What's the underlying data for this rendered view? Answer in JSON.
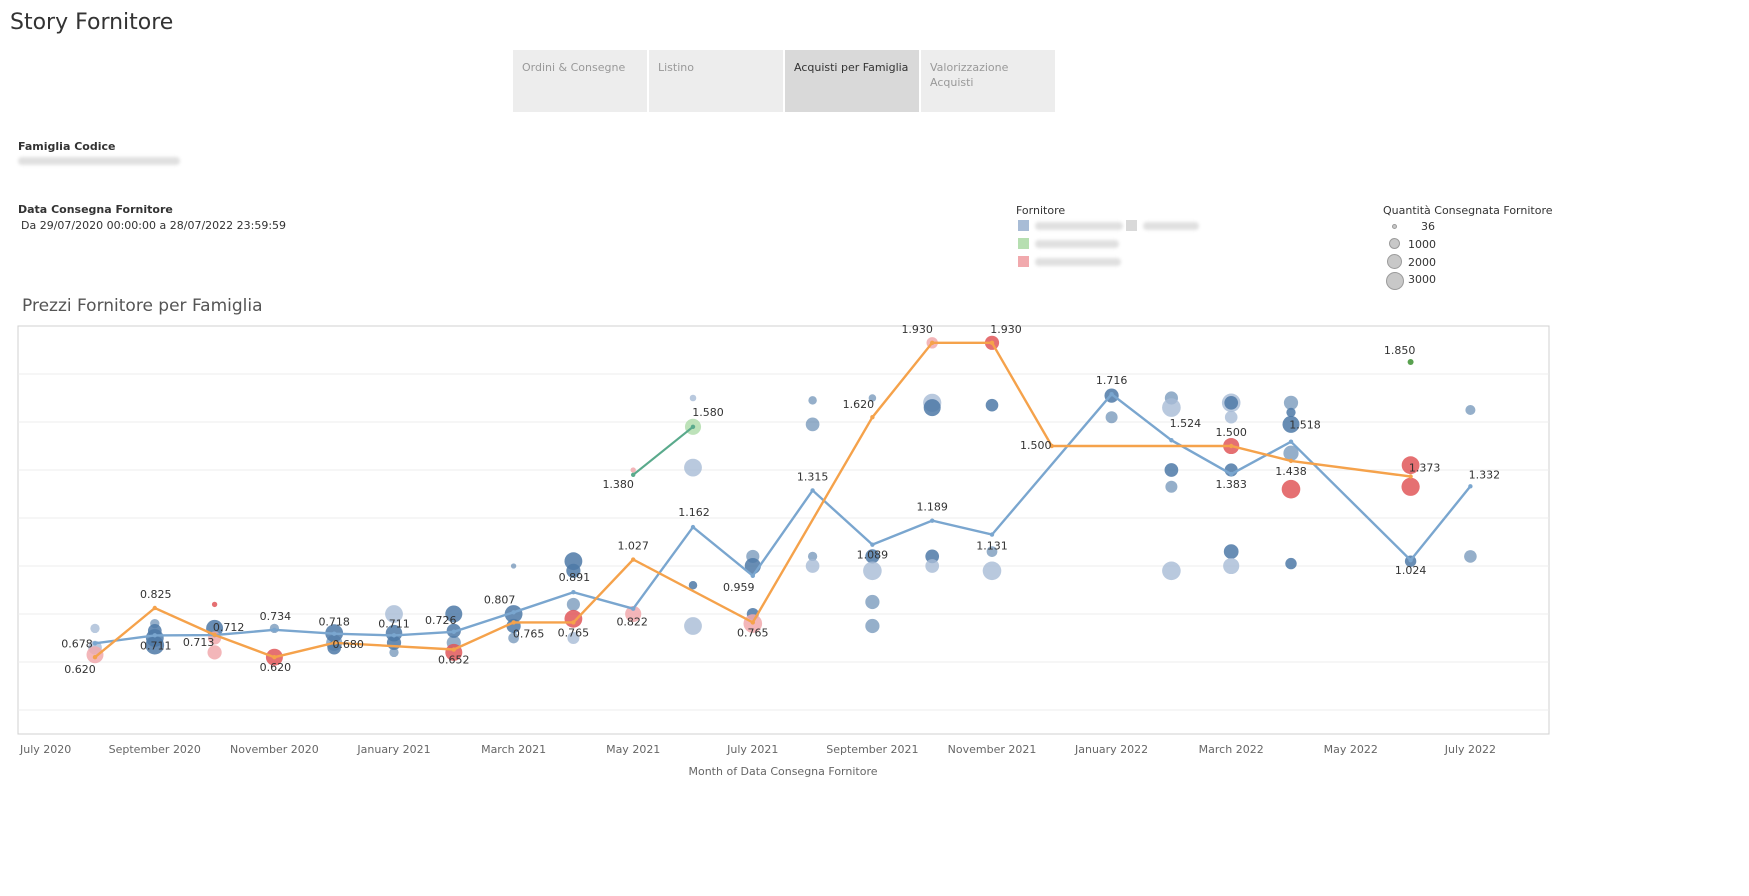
{
  "story": {
    "title": "Story Fornitore"
  },
  "tabs": [
    {
      "label": "Ordini & Consegne",
      "active": false
    },
    {
      "label": "Listino",
      "active": false
    },
    {
      "label": "Acquisti per Famiglia",
      "active": true
    },
    {
      "label": "Valorizzazione Acquisti",
      "active": false
    }
  ],
  "filters": {
    "famiglia": {
      "title": "Famiglia Codice"
    },
    "data": {
      "title": "Data Consegna Fornitore",
      "value": "Da 29/07/2020 00:00:00 a 28/07/2022 23:59:59"
    }
  },
  "legend": {
    "fornitore_title": "Fornitore",
    "colors": [
      "#a8bcd6",
      "#d9d9d9",
      "#b6dfb1",
      "#f1a9ad"
    ]
  },
  "size_legend": {
    "title": "Quantità Consegnata Fornitore",
    "entries": [
      "36",
      "1000",
      "2000",
      "3000"
    ]
  },
  "chart_title": "Prezzi Fornitore per Famiglia",
  "colors": {
    "blue_line": "#7aa6cf",
    "orange_line": "#f5a24b",
    "green_line": "#5aaa8c",
    "blue_dot": "#4e79a7",
    "red_dot": "#e15759",
    "green_dot": "#59a14f"
  },
  "chart_data": {
    "type": "line",
    "xlabel": "Month of Data Consegna Fornitore",
    "ylabel": "",
    "ylim": [
      0.3,
      2.0
    ],
    "x_ticks": [
      "July 2020",
      "September 2020",
      "November 2020",
      "January 2021",
      "March 2021",
      "May 2021",
      "July 2021",
      "September 2021",
      "November 2021",
      "January 2022",
      "March 2022",
      "May 2022",
      "July 2022"
    ],
    "series": [
      {
        "color": "#7aa6cf",
        "points": [
          {
            "x": "2020-08",
            "y": 0.678,
            "label": "0.678"
          },
          {
            "x": "2020-09",
            "y": 0.711,
            "label": "0.711"
          },
          {
            "x": "2020-10",
            "y": 0.712,
            "label": "0.712"
          },
          {
            "x": "2020-11",
            "y": 0.734,
            "label": "0.734"
          },
          {
            "x": "2020-12",
            "y": 0.718,
            "label": "0.718"
          },
          {
            "x": "2021-01",
            "y": 0.711,
            "label": "0.711"
          },
          {
            "x": "2021-02",
            "y": 0.726,
            "label": "0.726"
          },
          {
            "x": "2021-03",
            "y": 0.807,
            "label": "0.807"
          },
          {
            "x": "2021-04",
            "y": 0.891,
            "label": "0.891"
          },
          {
            "x": "2021-05",
            "y": 0.822,
            "label": "0.822"
          },
          {
            "x": "2021-06",
            "y": 1.162,
            "label": "1.162"
          },
          {
            "x": "2021-07",
            "y": 0.959,
            "label": "0.959"
          },
          {
            "x": "2021-08",
            "y": 1.315,
            "label": "1.315"
          },
          {
            "x": "2021-09",
            "y": 1.089,
            "label": "1.089"
          },
          {
            "x": "2021-10",
            "y": 1.189,
            "label": "1.189"
          },
          {
            "x": "2021-11",
            "y": 1.131,
            "label": "1.131"
          },
          {
            "x": "2022-01",
            "y": 1.716,
            "label": "1.716"
          },
          {
            "x": "2022-02",
            "y": 1.524,
            "label": "1.524"
          },
          {
            "x": "2022-03",
            "y": 1.383,
            "label": "1.383"
          },
          {
            "x": "2022-04",
            "y": 1.518,
            "label": "1.518"
          },
          {
            "x": "2022-06",
            "y": 1.024,
            "label": "1.024"
          },
          {
            "x": "2022-07",
            "y": 1.332,
            "label": "1.332"
          }
        ]
      },
      {
        "color": "#f5a24b",
        "points": [
          {
            "x": "2020-08",
            "y": 0.62,
            "label": "0.620"
          },
          {
            "x": "2020-09",
            "y": 0.825,
            "label": "0.825"
          },
          {
            "x": "2020-10",
            "y": 0.713,
            "label": "0.713"
          },
          {
            "x": "2020-11",
            "y": 0.62,
            "label": "0.620"
          },
          {
            "x": "2020-12",
            "y": 0.68,
            "label": "0.680"
          },
          {
            "x": "2021-02",
            "y": 0.652,
            "label": "0.652"
          },
          {
            "x": "2021-03",
            "y": 0.765,
            "label": "0.765"
          },
          {
            "x": "2021-04",
            "y": 0.765,
            "label": "0.765"
          },
          {
            "x": "2021-05",
            "y": 1.027,
            "label": "1.027"
          },
          {
            "x": "2021-07",
            "y": 0.765,
            "label": "0.765"
          },
          {
            "x": "2021-09",
            "y": 1.62,
            "label": "1.620"
          },
          {
            "x": "2021-10",
            "y": 1.93,
            "label": "1.930"
          },
          {
            "x": "2021-11",
            "y": 1.93,
            "label": "1.930"
          },
          {
            "x": "2021-12",
            "y": 1.5,
            "label": "1.500"
          },
          {
            "x": "2022-03",
            "y": 1.5,
            "label": "1.500"
          },
          {
            "x": "2022-04",
            "y": 1.438,
            "label": "1.438"
          },
          {
            "x": "2022-06",
            "y": 1.373,
            "label": "1.373"
          }
        ]
      },
      {
        "color": "#5aaa8c",
        "points": [
          {
            "x": "2021-05",
            "y": 1.38,
            "label": "1.380"
          },
          {
            "x": "2021-06",
            "y": 1.58,
            "label": "1.580"
          }
        ]
      },
      {
        "color": "#59a14f",
        "points": [
          {
            "x": "2022-06",
            "y": 1.85,
            "label": "1.850"
          }
        ]
      }
    ],
    "bubbles": [
      {
        "x": "2020-08",
        "y": 0.74,
        "size": 600,
        "color": "light"
      },
      {
        "x": "2020-08",
        "y": 0.66,
        "size": 1300,
        "color": "light"
      },
      {
        "x": "2020-08",
        "y": 0.63,
        "size": 2000,
        "color": "lred"
      },
      {
        "x": "2020-09",
        "y": 0.7,
        "size": 2200,
        "color": "blue"
      },
      {
        "x": "2020-09",
        "y": 0.67,
        "size": 2400,
        "color": "blue"
      },
      {
        "x": "2020-09",
        "y": 0.73,
        "size": 1300,
        "color": "blue"
      },
      {
        "x": "2020-09",
        "y": 0.76,
        "size": 600,
        "color": "mid"
      },
      {
        "x": "2020-10",
        "y": 0.74,
        "size": 2000,
        "color": "blue"
      },
      {
        "x": "2020-10",
        "y": 0.7,
        "size": 1200,
        "color": "lred"
      },
      {
        "x": "2020-10",
        "y": 0.64,
        "size": 1400,
        "color": "lred"
      },
      {
        "x": "2020-10",
        "y": 0.84,
        "size": 200,
        "color": "red"
      },
      {
        "x": "2020-11",
        "y": 0.62,
        "size": 2000,
        "color": "red"
      },
      {
        "x": "2020-11",
        "y": 0.74,
        "size": 600,
        "color": "mid"
      },
      {
        "x": "2020-12",
        "y": 0.72,
        "size": 2200,
        "color": "blue"
      },
      {
        "x": "2020-12",
        "y": 0.68,
        "size": 1800,
        "color": "mid"
      },
      {
        "x": "2020-12",
        "y": 0.66,
        "size": 1300,
        "color": "blue"
      },
      {
        "x": "2021-01",
        "y": 0.8,
        "size": 2200,
        "color": "light"
      },
      {
        "x": "2021-01",
        "y": 0.72,
        "size": 1900,
        "color": "blue"
      },
      {
        "x": "2021-01",
        "y": 0.68,
        "size": 1400,
        "color": "blue"
      },
      {
        "x": "2021-01",
        "y": 0.64,
        "size": 600,
        "color": "mid"
      },
      {
        "x": "2021-02",
        "y": 0.8,
        "size": 2000,
        "color": "blue"
      },
      {
        "x": "2021-02",
        "y": 0.73,
        "size": 1400,
        "color": "blue"
      },
      {
        "x": "2021-02",
        "y": 0.68,
        "size": 1400,
        "color": "mid"
      },
      {
        "x": "2021-02",
        "y": 0.64,
        "size": 2000,
        "color": "red"
      },
      {
        "x": "2021-03",
        "y": 0.8,
        "size": 2200,
        "color": "blue"
      },
      {
        "x": "2021-03",
        "y": 0.75,
        "size": 1400,
        "color": "blue"
      },
      {
        "x": "2021-03",
        "y": 0.7,
        "size": 800,
        "color": "mid"
      },
      {
        "x": "2021-03",
        "y": 1.0,
        "size": 200,
        "color": "mid"
      },
      {
        "x": "2021-04",
        "y": 1.02,
        "size": 2200,
        "color": "blue"
      },
      {
        "x": "2021-04",
        "y": 0.98,
        "size": 1400,
        "color": "blue"
      },
      {
        "x": "2021-04",
        "y": 0.84,
        "size": 1200,
        "color": "mid"
      },
      {
        "x": "2021-04",
        "y": 0.78,
        "size": 2200,
        "color": "red"
      },
      {
        "x": "2021-04",
        "y": 0.7,
        "size": 1000,
        "color": "light"
      },
      {
        "x": "2021-05",
        "y": 0.8,
        "size": 1800,
        "color": "lred"
      },
      {
        "x": "2021-05",
        "y": 1.4,
        "size": 200,
        "color": "lred"
      },
      {
        "x": "2021-06",
        "y": 1.7,
        "size": 300,
        "color": "light"
      },
      {
        "x": "2021-06",
        "y": 1.41,
        "size": 2200,
        "color": "light"
      },
      {
        "x": "2021-06",
        "y": 1.58,
        "size": 1800,
        "color": "lgreen"
      },
      {
        "x": "2021-06",
        "y": 0.92,
        "size": 500,
        "color": "blue"
      },
      {
        "x": "2021-06",
        "y": 0.75,
        "size": 2200,
        "color": "light"
      },
      {
        "x": "2021-07",
        "y": 1.0,
        "size": 1800,
        "color": "blue"
      },
      {
        "x": "2021-07",
        "y": 1.04,
        "size": 1200,
        "color": "mid"
      },
      {
        "x": "2021-07",
        "y": 0.8,
        "size": 1000,
        "color": "blue"
      },
      {
        "x": "2021-07",
        "y": 0.76,
        "size": 2400,
        "color": "lred"
      },
      {
        "x": "2021-08",
        "y": 1.69,
        "size": 500,
        "color": "mid"
      },
      {
        "x": "2021-08",
        "y": 1.59,
        "size": 1300,
        "color": "mid"
      },
      {
        "x": "2021-08",
        "y": 1.04,
        "size": 600,
        "color": "mid"
      },
      {
        "x": "2021-08",
        "y": 1.0,
        "size": 1300,
        "color": "light"
      },
      {
        "x": "2021-09",
        "y": 1.7,
        "size": 400,
        "color": "mid"
      },
      {
        "x": "2021-09",
        "y": 1.04,
        "size": 1400,
        "color": "blue"
      },
      {
        "x": "2021-09",
        "y": 0.98,
        "size": 2400,
        "color": "light"
      },
      {
        "x": "2021-09",
        "y": 0.85,
        "size": 1400,
        "color": "mid"
      },
      {
        "x": "2021-09",
        "y": 0.75,
        "size": 1400,
        "color": "mid"
      },
      {
        "x": "2021-10",
        "y": 1.93,
        "size": 900,
        "color": "lred"
      },
      {
        "x": "2021-10",
        "y": 1.68,
        "size": 2300,
        "color": "light"
      },
      {
        "x": "2021-10",
        "y": 1.66,
        "size": 2000,
        "color": "blue"
      },
      {
        "x": "2021-10",
        "y": 1.04,
        "size": 1300,
        "color": "blue"
      },
      {
        "x": "2021-10",
        "y": 1.0,
        "size": 1300,
        "color": "light"
      },
      {
        "x": "2021-11",
        "y": 1.93,
        "size": 1400,
        "color": "red"
      },
      {
        "x": "2021-11",
        "y": 1.67,
        "size": 1100,
        "color": "blue"
      },
      {
        "x": "2021-11",
        "y": 1.06,
        "size": 800,
        "color": "mid"
      },
      {
        "x": "2021-11",
        "y": 0.98,
        "size": 2400,
        "color": "light"
      },
      {
        "x": "2022-01",
        "y": 1.71,
        "size": 1400,
        "color": "blue"
      },
      {
        "x": "2022-01",
        "y": 1.62,
        "size": 1000,
        "color": "mid"
      },
      {
        "x": "2022-02",
        "y": 1.7,
        "size": 1200,
        "color": "mid"
      },
      {
        "x": "2022-02",
        "y": 1.66,
        "size": 2400,
        "color": "light"
      },
      {
        "x": "2022-02",
        "y": 1.4,
        "size": 1300,
        "color": "blue"
      },
      {
        "x": "2022-02",
        "y": 1.33,
        "size": 1000,
        "color": "mid"
      },
      {
        "x": "2022-02",
        "y": 0.98,
        "size": 2400,
        "color": "light"
      },
      {
        "x": "2022-03",
        "y": 1.68,
        "size": 2400,
        "color": "light"
      },
      {
        "x": "2022-03",
        "y": 1.68,
        "size": 1300,
        "color": "blue"
      },
      {
        "x": "2022-03",
        "y": 1.62,
        "size": 1100,
        "color": "light"
      },
      {
        "x": "2022-03",
        "y": 1.5,
        "size": 1800,
        "color": "red"
      },
      {
        "x": "2022-03",
        "y": 1.4,
        "size": 1200,
        "color": "blue"
      },
      {
        "x": "2022-03",
        "y": 1.06,
        "size": 1500,
        "color": "blue"
      },
      {
        "x": "2022-03",
        "y": 1.0,
        "size": 1800,
        "color": "light"
      },
      {
        "x": "2022-04",
        "y": 1.68,
        "size": 1400,
        "color": "mid"
      },
      {
        "x": "2022-04",
        "y": 1.59,
        "size": 2000,
        "color": "blue"
      },
      {
        "x": "2022-04",
        "y": 1.64,
        "size": 600,
        "color": "blue"
      },
      {
        "x": "2022-04",
        "y": 1.47,
        "size": 1600,
        "color": "mid"
      },
      {
        "x": "2022-04",
        "y": 1.32,
        "size": 2400,
        "color": "red"
      },
      {
        "x": "2022-04",
        "y": 1.01,
        "size": 900,
        "color": "blue"
      },
      {
        "x": "2022-06",
        "y": 1.42,
        "size": 2200,
        "color": "red"
      },
      {
        "x": "2022-06",
        "y": 1.33,
        "size": 2300,
        "color": "red"
      },
      {
        "x": "2022-06",
        "y": 1.02,
        "size": 900,
        "color": "blue"
      },
      {
        "x": "2022-07",
        "y": 1.65,
        "size": 700,
        "color": "mid"
      },
      {
        "x": "2022-07",
        "y": 1.04,
        "size": 1100,
        "color": "mid"
      }
    ]
  }
}
